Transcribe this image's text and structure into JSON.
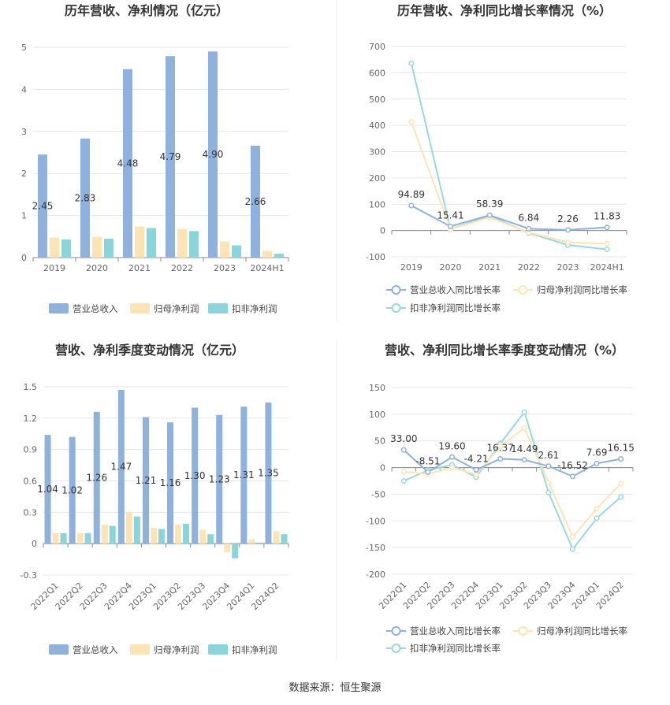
{
  "colors": {
    "revenue": "#8eb1dd",
    "net_profit": "#fde4b2",
    "deducted_profit": "#88d5db",
    "revenue_line": "#8eb1dd",
    "net_line": "#fde4b2",
    "deducted_line": "#96d9df",
    "grid": "#e6e6e6",
    "axis_text": "#666666",
    "title": "#333333"
  },
  "source": "数据来源：恒生聚源",
  "chart_data": [
    {
      "id": "annual-bar",
      "type": "bar",
      "title": "历年营收、净利情况（亿元）",
      "categories": [
        "2019",
        "2020",
        "2021",
        "2022",
        "2023",
        "2024H1"
      ],
      "ylim": [
        0,
        5
      ],
      "yticks": [
        0,
        1,
        2,
        3,
        4,
        5
      ],
      "grid": true,
      "legend_position": "bottom",
      "series": [
        {
          "name": "营业总收入",
          "values": [
            2.45,
            2.83,
            4.48,
            4.79,
            4.9,
            2.66
          ],
          "labels": [
            "2.45",
            "2.83",
            "4.48",
            "4.79",
            "4.90",
            "2.66"
          ]
        },
        {
          "name": "归母净利润",
          "values": [
            0.47,
            0.49,
            0.74,
            0.68,
            0.38,
            0.16
          ]
        },
        {
          "name": "扣非净利润",
          "values": [
            0.43,
            0.45,
            0.7,
            0.63,
            0.29,
            0.09
          ]
        }
      ]
    },
    {
      "id": "annual-line",
      "type": "line",
      "title": "历年营收、净利同比增长率情况（%）",
      "categories": [
        "2019",
        "2020",
        "2021",
        "2022",
        "2023",
        "2024H1"
      ],
      "ylim": [
        -100,
        700
      ],
      "yticks": [
        -100,
        0,
        100,
        200,
        300,
        400,
        500,
        600,
        700
      ],
      "grid": true,
      "legend_position": "bottom",
      "series": [
        {
          "name": "营业总收入同比增长率",
          "values": [
            94.89,
            15.41,
            58.39,
            6.84,
            2.26,
            11.83
          ],
          "labels": [
            "94.89",
            "15.41",
            "58.39",
            "6.84",
            "2.26",
            "11.83"
          ]
        },
        {
          "name": "归母净利润同比增长率",
          "values": [
            413,
            5,
            50,
            -8,
            -45,
            -50
          ]
        },
        {
          "name": "扣非净利润同比增长率",
          "values": [
            636,
            5,
            56,
            -10,
            -55,
            -72
          ]
        }
      ]
    },
    {
      "id": "quarter-bar",
      "type": "bar",
      "title": "营收、净利季度变动情况（亿元）",
      "categories": [
        "2022Q1",
        "2022Q2",
        "2022Q3",
        "2022Q4",
        "2023Q1",
        "2023Q2",
        "2023Q3",
        "2023Q4",
        "2024Q1",
        "2024Q2"
      ],
      "ylim": [
        -0.3,
        1.5
      ],
      "yticks": [
        -0.3,
        0,
        0.3,
        0.6,
        0.9,
        1.2,
        1.5
      ],
      "ytick_labels": [
        "-0.3",
        "0",
        "0.3",
        "0.6",
        "0.9",
        "1.2",
        "1.5"
      ],
      "grid": true,
      "legend_position": "bottom",
      "series": [
        {
          "name": "营业总收入",
          "values": [
            1.04,
            1.02,
            1.26,
            1.47,
            1.21,
            1.16,
            1.3,
            1.23,
            1.31,
            1.35
          ],
          "labels": [
            "1.04",
            "1.02",
            "1.26",
            "1.47",
            "1.21",
            "1.16",
            "1.30",
            "1.23",
            "1.31",
            "1.35"
          ]
        },
        {
          "name": "归母净利润",
          "values": [
            0.1,
            0.1,
            0.18,
            0.3,
            0.15,
            0.18,
            0.13,
            -0.08,
            0.04,
            0.12
          ]
        },
        {
          "name": "扣非净利润",
          "values": [
            0.1,
            0.1,
            0.17,
            0.26,
            0.14,
            0.19,
            0.09,
            -0.14,
            0.01,
            0.09
          ]
        }
      ]
    },
    {
      "id": "quarter-line",
      "type": "line",
      "title": "营收、净利同比增长率季度变动情况（%）",
      "categories": [
        "2022Q1",
        "2022Q2",
        "2022Q3",
        "2022Q4",
        "2023Q1",
        "2023Q2",
        "2023Q3",
        "2023Q4",
        "2024Q1",
        "2024Q2"
      ],
      "ylim": [
        -200,
        150
      ],
      "yticks": [
        -200,
        -150,
        -100,
        -50,
        0,
        50,
        100,
        150
      ],
      "grid": true,
      "legend_position": "bottom",
      "series": [
        {
          "name": "营业总收入同比增长率",
          "values": [
            33.0,
            -8.51,
            19.6,
            -4.21,
            16.37,
            14.49,
            2.61,
            -16.52,
            7.69,
            16.15
          ],
          "labels": [
            "33.00",
            "-8.51",
            "19.60",
            "-4.21",
            "16.37",
            "14.49",
            "2.61",
            "-16.52",
            "7.69",
            "16.15"
          ]
        },
        {
          "name": "归母净利润同比增长率",
          "values": [
            -8,
            -12,
            0,
            -13,
            40,
            74,
            -28,
            -130,
            -77,
            -30
          ]
        },
        {
          "name": "扣非净利润同比增长率",
          "values": [
            -25,
            -5,
            5,
            -18,
            45,
            104,
            -47,
            -153,
            -95,
            -55
          ]
        }
      ]
    }
  ]
}
